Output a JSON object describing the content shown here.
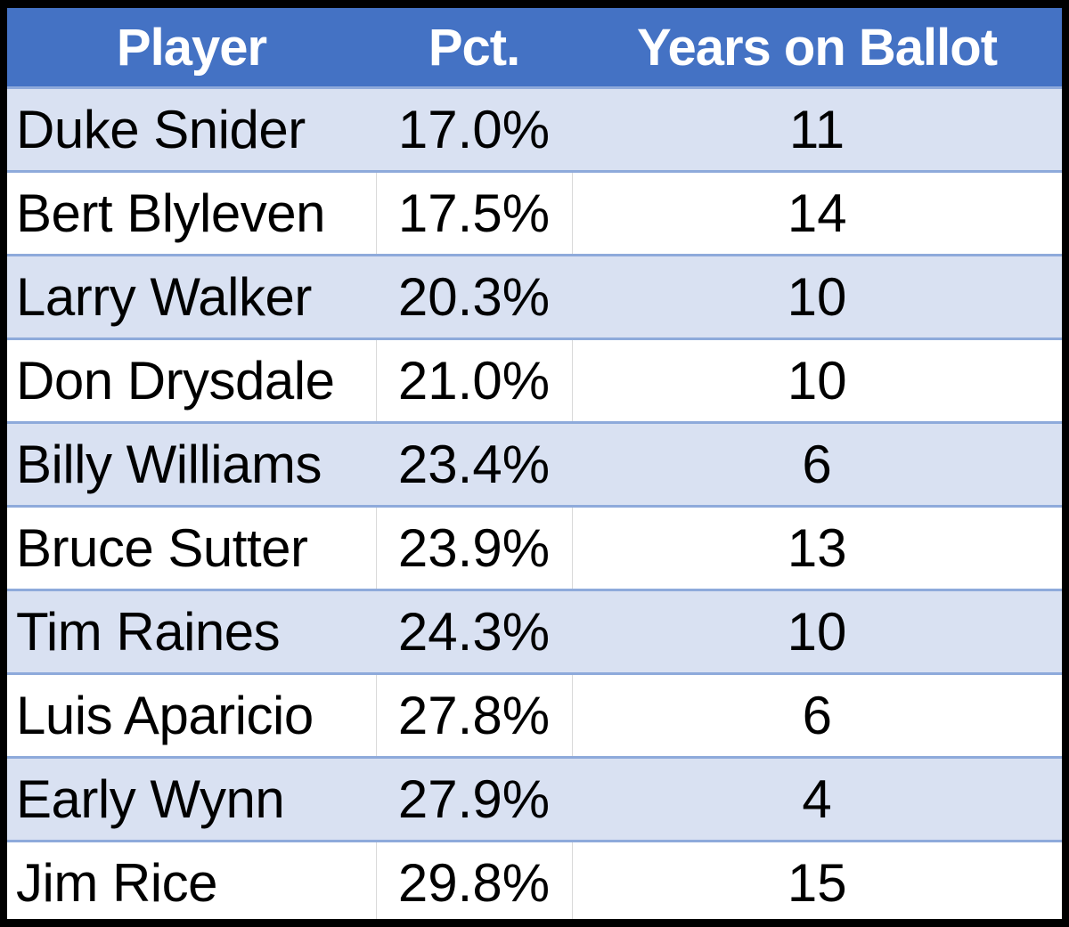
{
  "table": {
    "headers": [
      "Player",
      "Pct.",
      "Years on Ballot"
    ],
    "rows": [
      {
        "player": "Duke Snider",
        "pct": "17.0%",
        "years": "11"
      },
      {
        "player": "Bert Blyleven",
        "pct": "17.5%",
        "years": "14"
      },
      {
        "player": "Larry Walker",
        "pct": "20.3%",
        "years": "10"
      },
      {
        "player": "Don Drysdale",
        "pct": "21.0%",
        "years": "10"
      },
      {
        "player": "Billy Williams",
        "pct": "23.4%",
        "years": "6"
      },
      {
        "player": "Bruce Sutter",
        "pct": "23.9%",
        "years": "13"
      },
      {
        "player": "Tim Raines",
        "pct": "24.3%",
        "years": "10"
      },
      {
        "player": "Luis Aparicio",
        "pct": "27.8%",
        "years": "6"
      },
      {
        "player": "Early Wynn",
        "pct": "27.9%",
        "years": "4"
      },
      {
        "player": "Jim Rice",
        "pct": "29.8%",
        "years": "15"
      }
    ]
  },
  "colors": {
    "header_bg": "#4472c4",
    "header_text": "#ffffff",
    "band_shaded": "#d9e1f2",
    "band_plain": "#ffffff",
    "row_rule": "#8eaadb",
    "frame": "#000000"
  }
}
